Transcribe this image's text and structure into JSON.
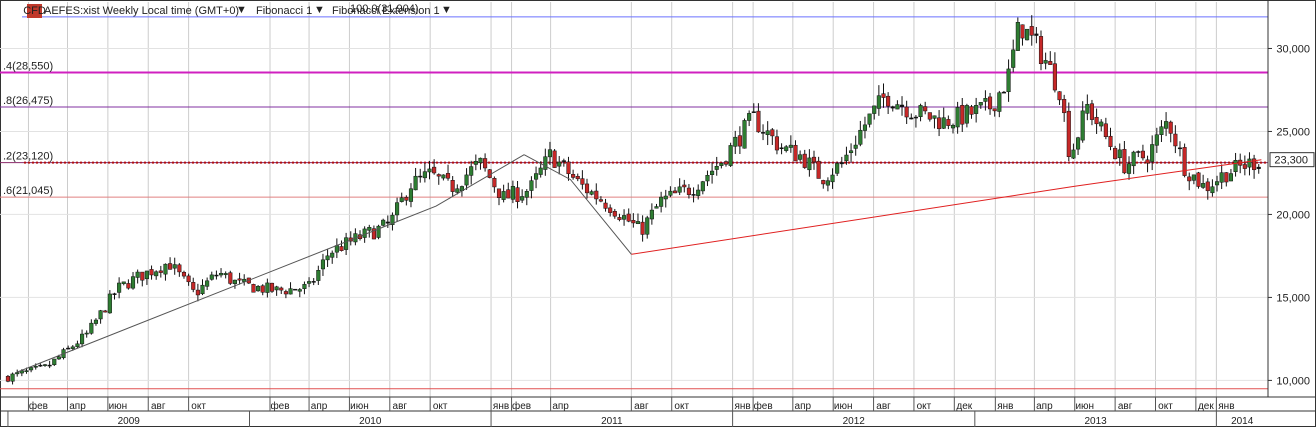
{
  "header": {
    "badge": "CFD",
    "title": "AEFES:xist Weekly Local time (GMT+0)",
    "indicators": [
      "Fibonacci 1",
      "Fibonacci Extension 1"
    ]
  },
  "chart_data": {
    "type": "candlestick",
    "symbol": "AEFES:xist",
    "timeframe": "Weekly",
    "ylim": [
      9000,
      32800
    ],
    "y_ticks": [
      "10,000",
      "15,000",
      "20,000",
      "25,000",
      "30,000"
    ],
    "last_price_label": "23,300",
    "last_price": 23300,
    "support_level": 23120,
    "colors": {
      "up": "#2e7d32",
      "down": "#c62828",
      "neutral": "#111111",
      "fib": "#d020c0",
      "fib_alt": "#8030a0",
      "blue_line": "#6a72ff",
      "red_level": "#e05050",
      "trend_red": "#e02020",
      "trend_gray": "#555555"
    },
    "fib_levels": [
      {
        "label": ".4(28,550)",
        "value": 28550,
        "color": "#d020c0"
      },
      {
        "label": ".8(26,475)",
        "value": 26475,
        "color": "#8030a0"
      },
      {
        "label": ".2(23,120)",
        "value": 23120,
        "color": "#8a2a6a"
      },
      {
        "label": ".6(21,045)",
        "value": 21045,
        "color": "#e08080"
      }
    ],
    "top_level": {
      "label": "100.0(31,904)",
      "value": 31904
    },
    "bottom_level": {
      "value": 9500
    },
    "trendlines": [
      {
        "color": "gray",
        "points": [
          [
            "2009-01-15",
            10500
          ],
          [
            "2010-10-10",
            20500
          ],
          [
            "2011-02-20",
            23600
          ]
        ]
      },
      {
        "color": "gray",
        "points": [
          [
            "2011-02-20",
            23600
          ],
          [
            "2011-05-01",
            22100
          ],
          [
            "2011-08-01",
            17600
          ]
        ]
      },
      {
        "color": "red",
        "points": [
          [
            "2011-08-01",
            17600
          ],
          [
            "2013-06-01",
            21700
          ],
          [
            "2014-03-10",
            23300
          ]
        ]
      }
    ],
    "month_labels": [
      {
        "date": "2009-02-01",
        "label": "фев"
      },
      {
        "date": "2009-04-01",
        "label": "апр"
      },
      {
        "date": "2009-06-01",
        "label": "июн"
      },
      {
        "date": "2009-08-01",
        "label": "авг"
      },
      {
        "date": "2009-10-01",
        "label": "окт"
      },
      {
        "date": "2010-02-01",
        "label": "фев"
      },
      {
        "date": "2010-04-01",
        "label": "апр"
      },
      {
        "date": "2010-06-01",
        "label": "июн"
      },
      {
        "date": "2010-08-01",
        "label": "авг"
      },
      {
        "date": "2010-10-01",
        "label": "окт"
      },
      {
        "date": "2011-01-01",
        "label": "янв"
      },
      {
        "date": "2011-02-01",
        "label": "фев"
      },
      {
        "date": "2011-04-01",
        "label": "апр"
      },
      {
        "date": "2011-08-01",
        "label": "авг"
      },
      {
        "date": "2011-10-01",
        "label": "окт"
      },
      {
        "date": "2012-01-01",
        "label": "янв"
      },
      {
        "date": "2012-02-01",
        "label": "фев"
      },
      {
        "date": "2012-04-01",
        "label": "апр"
      },
      {
        "date": "2012-06-01",
        "label": "июн"
      },
      {
        "date": "2012-08-01",
        "label": "авг"
      },
      {
        "date": "2012-10-01",
        "label": "окт"
      },
      {
        "date": "2012-12-01",
        "label": "дек"
      },
      {
        "date": "2013-02-01",
        "label": "янв"
      },
      {
        "date": "2013-04-01",
        "label": "апр"
      },
      {
        "date": "2013-06-01",
        "label": "июн"
      },
      {
        "date": "2013-08-01",
        "label": "авг"
      },
      {
        "date": "2013-10-01",
        "label": "окт"
      },
      {
        "date": "2013-12-01",
        "label": "дек"
      },
      {
        "date": "2014-01-01",
        "label": "янв"
      }
    ],
    "year_labels": [
      "2009",
      "2010",
      "2011",
      "2012",
      "2013",
      "2014"
    ],
    "close_path": [
      [
        "2009-01-01",
        10200
      ],
      [
        "2009-03-01",
        10800
      ],
      [
        "2009-05-01",
        12800
      ],
      [
        "2009-06-15",
        15500
      ],
      [
        "2009-07-15",
        16200
      ],
      [
        "2009-09-01",
        17100
      ],
      [
        "2009-10-10",
        15200
      ],
      [
        "2009-11-15",
        16500
      ],
      [
        "2009-12-15",
        15800
      ],
      [
        "2010-02-10",
        15400
      ],
      [
        "2010-04-01",
        15600
      ],
      [
        "2010-05-01",
        17700
      ],
      [
        "2010-06-15",
        18600
      ],
      [
        "2010-08-01",
        19400
      ],
      [
        "2010-09-01",
        21800
      ],
      [
        "2010-10-01",
        22400
      ],
      [
        "2010-11-01",
        21600
      ],
      [
        "2010-12-15",
        23100
      ],
      [
        "2011-01-20",
        21000
      ],
      [
        "2011-03-01",
        21500
      ],
      [
        "2011-04-01",
        23600
      ],
      [
        "2011-05-15",
        21800
      ],
      [
        "2011-07-01",
        20500
      ],
      [
        "2011-08-15",
        19000
      ],
      [
        "2011-09-15",
        20800
      ],
      [
        "2011-11-01",
        21600
      ],
      [
        "2011-12-15",
        23200
      ],
      [
        "2012-02-01",
        25800
      ],
      [
        "2012-03-15",
        24000
      ],
      [
        "2012-04-15",
        23500
      ],
      [
        "2012-05-15",
        22200
      ],
      [
        "2012-06-15",
        23100
      ],
      [
        "2012-07-15",
        25200
      ],
      [
        "2012-08-20",
        27200
      ],
      [
        "2012-10-01",
        26200
      ],
      [
        "2012-11-15",
        25600
      ],
      [
        "2012-12-20",
        26000
      ],
      [
        "2013-01-25",
        26500
      ],
      [
        "2013-02-20",
        28200
      ],
      [
        "2013-03-10",
        31500
      ],
      [
        "2013-04-15",
        29500
      ],
      [
        "2013-05-10",
        27500
      ],
      [
        "2013-05-25",
        23500
      ],
      [
        "2013-06-20",
        26500
      ],
      [
        "2013-07-20",
        24500
      ],
      [
        "2013-08-15",
        23000
      ],
      [
        "2013-09-20",
        23600
      ],
      [
        "2013-10-20",
        25700
      ],
      [
        "2013-11-15",
        22800
      ],
      [
        "2013-12-15",
        21600
      ],
      [
        "2014-01-15",
        22500
      ],
      [
        "2014-02-15",
        23000
      ],
      [
        "2014-03-10",
        23300
      ]
    ]
  }
}
